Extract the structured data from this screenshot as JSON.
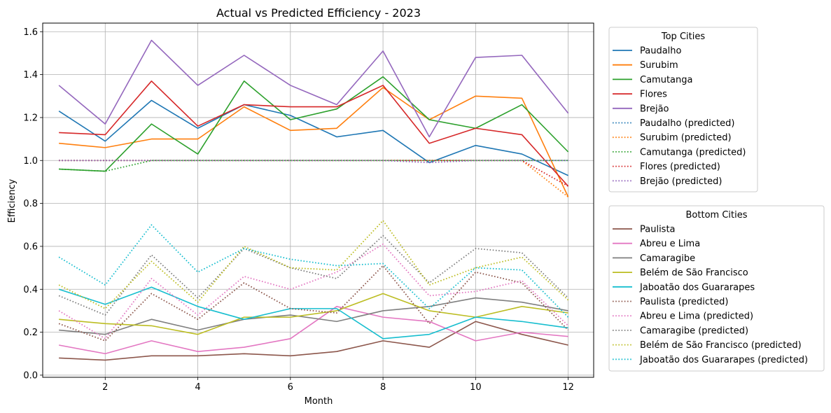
{
  "chart_data": {
    "type": "line",
    "title": "Actual vs Predicted Efficiency - 2023",
    "xlabel": "Month",
    "ylabel": "Efficiency",
    "xlim": [
      0.65,
      12.55
    ],
    "ylim": [
      -0.01,
      1.64
    ],
    "xticks": [
      2,
      4,
      6,
      8,
      10,
      12
    ],
    "yticks": [
      0.0,
      0.2,
      0.4,
      0.6,
      0.8,
      1.0,
      1.2,
      1.4,
      1.6
    ],
    "grid": true,
    "x": [
      1,
      2,
      3,
      4,
      5,
      6,
      7,
      8,
      9,
      10,
      11,
      12
    ],
    "legends": [
      {
        "title": "Top Cities",
        "placement": "outside-right-top",
        "entries": [
          {
            "label": "Paudalho",
            "color": "#1f77b4",
            "style": "solid"
          },
          {
            "label": "Surubim",
            "color": "#ff7f0e",
            "style": "solid"
          },
          {
            "label": "Camutanga",
            "color": "#2ca02c",
            "style": "solid"
          },
          {
            "label": "Flores",
            "color": "#d62728",
            "style": "solid"
          },
          {
            "label": "Brejão",
            "color": "#9467bd",
            "style": "solid"
          },
          {
            "label": "Paudalho (predicted)",
            "color": "#1f77b4",
            "style": "dotted"
          },
          {
            "label": "Surubim (predicted)",
            "color": "#ff7f0e",
            "style": "dotted"
          },
          {
            "label": "Camutanga (predicted)",
            "color": "#2ca02c",
            "style": "dotted"
          },
          {
            "label": "Flores (predicted)",
            "color": "#d62728",
            "style": "dotted"
          },
          {
            "label": "Brejão (predicted)",
            "color": "#9467bd",
            "style": "dotted"
          }
        ]
      },
      {
        "title": "Bottom Cities",
        "placement": "outside-right-bottom",
        "entries": [
          {
            "label": "Paulista",
            "color": "#8c564b",
            "style": "solid"
          },
          {
            "label": "Abreu e Lima",
            "color": "#e377c2",
            "style": "solid"
          },
          {
            "label": "Camaragibe",
            "color": "#7f7f7f",
            "style": "solid"
          },
          {
            "label": "Belém de São Francisco",
            "color": "#bcbd22",
            "style": "solid"
          },
          {
            "label": "Jaboatão dos Guararapes",
            "color": "#17becf",
            "style": "solid"
          },
          {
            "label": "Paulista (predicted)",
            "color": "#8c564b",
            "style": "dotted"
          },
          {
            "label": "Abreu e Lima (predicted)",
            "color": "#e377c2",
            "style": "dotted"
          },
          {
            "label": "Camaragibe (predicted)",
            "color": "#7f7f7f",
            "style": "dotted"
          },
          {
            "label": "Belém de São Francisco (predicted)",
            "color": "#bcbd22",
            "style": "dotted"
          },
          {
            "label": "Jaboatão dos Guararapes (predicted)",
            "color": "#17becf",
            "style": "dotted"
          }
        ]
      }
    ],
    "series": [
      {
        "name": "Paudalho",
        "color": "#1f77b4",
        "style": "solid",
        "values": [
          1.23,
          1.09,
          1.28,
          1.15,
          1.26,
          1.21,
          1.11,
          1.14,
          0.99,
          1.07,
          1.03,
          0.93
        ]
      },
      {
        "name": "Surubim",
        "color": "#ff7f0e",
        "style": "solid",
        "values": [
          1.08,
          1.06,
          1.1,
          1.1,
          1.25,
          1.14,
          1.15,
          1.34,
          1.19,
          1.3,
          1.29,
          0.83
        ]
      },
      {
        "name": "Camutanga",
        "color": "#2ca02c",
        "style": "solid",
        "values": [
          0.96,
          0.95,
          1.17,
          1.03,
          1.37,
          1.19,
          1.24,
          1.39,
          1.19,
          1.15,
          1.26,
          1.04
        ]
      },
      {
        "name": "Flores",
        "color": "#d62728",
        "style": "solid",
        "values": [
          1.13,
          1.12,
          1.37,
          1.16,
          1.26,
          1.25,
          1.25,
          1.35,
          1.08,
          1.15,
          1.12,
          0.88
        ]
      },
      {
        "name": "Brejão",
        "color": "#9467bd",
        "style": "solid",
        "values": [
          1.35,
          1.17,
          1.56,
          1.35,
          1.49,
          1.35,
          1.26,
          1.51,
          1.11,
          1.48,
          1.49,
          1.22
        ]
      },
      {
        "name": "Paudalho (predicted)",
        "color": "#1f77b4",
        "style": "dotted",
        "values": [
          1.0,
          1.0,
          1.0,
          1.0,
          1.0,
          1.0,
          1.0,
          1.0,
          1.0,
          1.0,
          1.0,
          1.0
        ]
      },
      {
        "name": "Surubim (predicted)",
        "color": "#ff7f0e",
        "style": "dotted",
        "values": [
          1.0,
          1.0,
          1.0,
          1.0,
          1.0,
          1.0,
          1.0,
          1.0,
          1.0,
          1.0,
          1.0,
          0.83
        ]
      },
      {
        "name": "Camutanga (predicted)",
        "color": "#2ca02c",
        "style": "dotted",
        "values": [
          0.96,
          0.95,
          1.0,
          1.0,
          1.0,
          1.0,
          1.0,
          1.0,
          1.0,
          1.0,
          1.0,
          1.0
        ]
      },
      {
        "name": "Flores (predicted)",
        "color": "#d62728",
        "style": "dotted",
        "values": [
          1.0,
          1.0,
          1.0,
          1.0,
          1.0,
          1.0,
          1.0,
          1.0,
          1.0,
          1.0,
          1.0,
          0.88
        ]
      },
      {
        "name": "Brejão (predicted)",
        "color": "#9467bd",
        "style": "dotted",
        "values": [
          1.0,
          1.0,
          1.0,
          1.0,
          1.0,
          1.0,
          1.0,
          1.0,
          0.99,
          1.0,
          1.0,
          1.0
        ]
      },
      {
        "name": "Paulista",
        "color": "#8c564b",
        "style": "solid",
        "values": [
          0.08,
          0.07,
          0.09,
          0.09,
          0.1,
          0.09,
          0.11,
          0.16,
          0.13,
          0.25,
          0.19,
          0.14
        ]
      },
      {
        "name": "Abreu e Lima",
        "color": "#e377c2",
        "style": "solid",
        "values": [
          0.14,
          0.1,
          0.16,
          0.11,
          0.13,
          0.17,
          0.32,
          0.27,
          0.25,
          0.16,
          0.2,
          0.18
        ]
      },
      {
        "name": "Camaragibe",
        "color": "#7f7f7f",
        "style": "solid",
        "values": [
          0.21,
          0.19,
          0.26,
          0.21,
          0.26,
          0.28,
          0.25,
          0.3,
          0.32,
          0.36,
          0.34,
          0.3
        ]
      },
      {
        "name": "Belém de São Francisco",
        "color": "#bcbd22",
        "style": "solid",
        "values": [
          0.26,
          0.24,
          0.23,
          0.19,
          0.27,
          0.27,
          0.3,
          0.38,
          0.3,
          0.27,
          0.32,
          0.29
        ]
      },
      {
        "name": "Jaboatão dos Guararapes",
        "color": "#17becf",
        "style": "solid",
        "values": [
          0.4,
          0.33,
          0.41,
          0.32,
          0.26,
          0.31,
          0.31,
          0.17,
          0.19,
          0.27,
          0.25,
          0.22
        ]
      },
      {
        "name": "Paulista (predicted)",
        "color": "#8c564b",
        "style": "dotted",
        "values": [
          0.24,
          0.16,
          0.38,
          0.26,
          0.43,
          0.31,
          0.29,
          0.51,
          0.24,
          0.48,
          0.43,
          0.21
        ]
      },
      {
        "name": "Abreu e Lima (predicted)",
        "color": "#e377c2",
        "style": "dotted",
        "values": [
          0.3,
          0.17,
          0.45,
          0.28,
          0.46,
          0.4,
          0.48,
          0.61,
          0.37,
          0.39,
          0.44,
          0.23
        ]
      },
      {
        "name": "Camaragibe (predicted)",
        "color": "#7f7f7f",
        "style": "dotted",
        "values": [
          0.37,
          0.28,
          0.56,
          0.36,
          0.59,
          0.5,
          0.45,
          0.65,
          0.43,
          0.59,
          0.57,
          0.36
        ]
      },
      {
        "name": "Belém de São Francisco (predicted)",
        "color": "#bcbd22",
        "style": "dotted",
        "values": [
          0.42,
          0.31,
          0.53,
          0.34,
          0.6,
          0.5,
          0.49,
          0.72,
          0.42,
          0.5,
          0.55,
          0.35
        ]
      },
      {
        "name": "Jaboatão dos Guararapes (predicted)",
        "color": "#17becf",
        "style": "dotted",
        "values": [
          0.55,
          0.42,
          0.7,
          0.48,
          0.59,
          0.54,
          0.51,
          0.52,
          0.31,
          0.5,
          0.49,
          0.27
        ]
      }
    ]
  }
}
